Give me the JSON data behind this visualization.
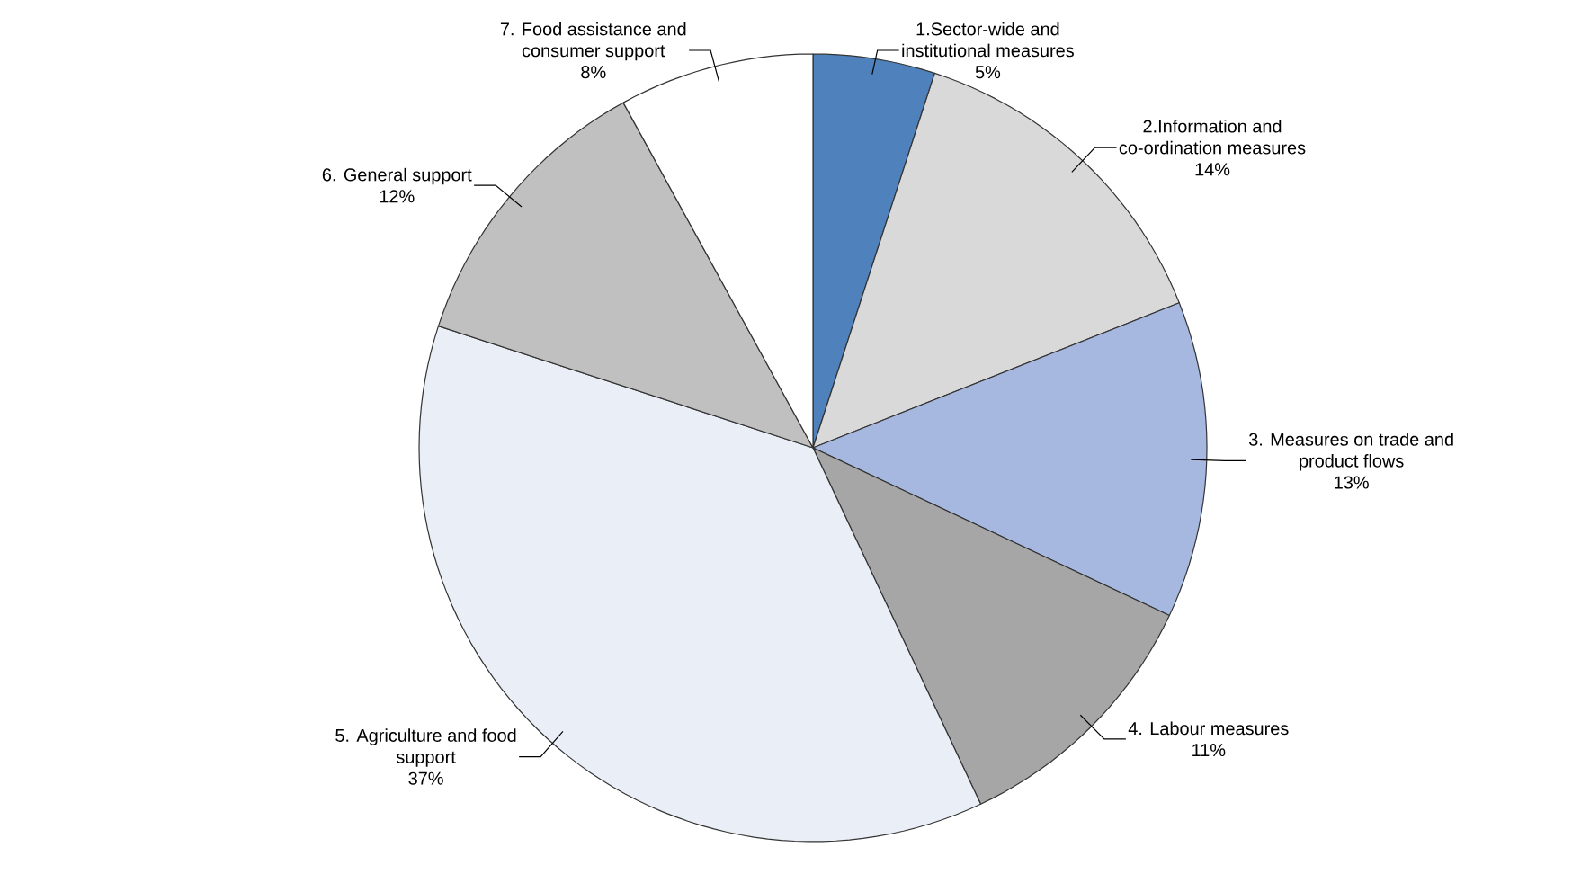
{
  "chart_data": {
    "type": "pie",
    "categories": [
      "1.Sector-wide and institutional measures",
      "2.Information and co-ordination measures",
      "3. Measures on trade and product flows",
      "4. Labour measures",
      "5. Agriculture and food support",
      "6. General  support",
      "7. Food assistance and consumer support"
    ],
    "values": [
      5,
      14,
      13,
      11,
      37,
      12,
      8
    ],
    "value_labels": [
      "5%",
      "14%",
      "13%",
      "11%",
      "37%",
      "12%",
      "8%"
    ],
    "colors": [
      "#4f81bd",
      "#d9d9d9",
      "#a7b8e0",
      "#a6a6a6",
      "#eaeef7",
      "#c0c0c0",
      "#ffffff"
    ]
  }
}
